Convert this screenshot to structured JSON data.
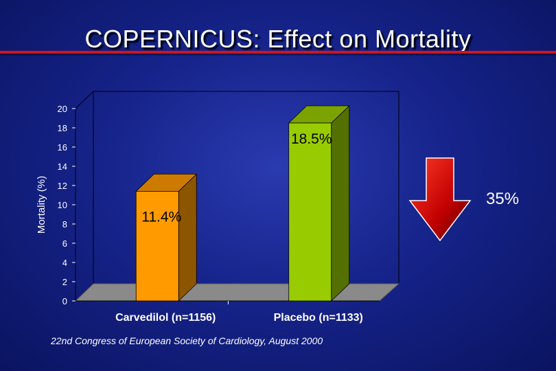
{
  "title": "COPERNICUS: Effect on Mortality",
  "chart_data": {
    "type": "bar",
    "categories": [
      "Carvedilol (n=1156)",
      "Placebo (n=1133)"
    ],
    "values": [
      11.4,
      18.5
    ],
    "data_labels": [
      "11.4%",
      "18.5%"
    ],
    "ylabel": "Mortality (%)",
    "ylim": [
      0,
      20
    ],
    "yticks": [
      "0",
      "2",
      "4",
      "6",
      "8",
      "10",
      "12",
      "14",
      "16",
      "18",
      "20"
    ],
    "colors": [
      "#ff9a00",
      "#99cc00"
    ]
  },
  "reduction": {
    "label": "35%",
    "arrow_color": "#c00000"
  },
  "source": "22nd Congress of European Society of Cardiology, August 2000"
}
